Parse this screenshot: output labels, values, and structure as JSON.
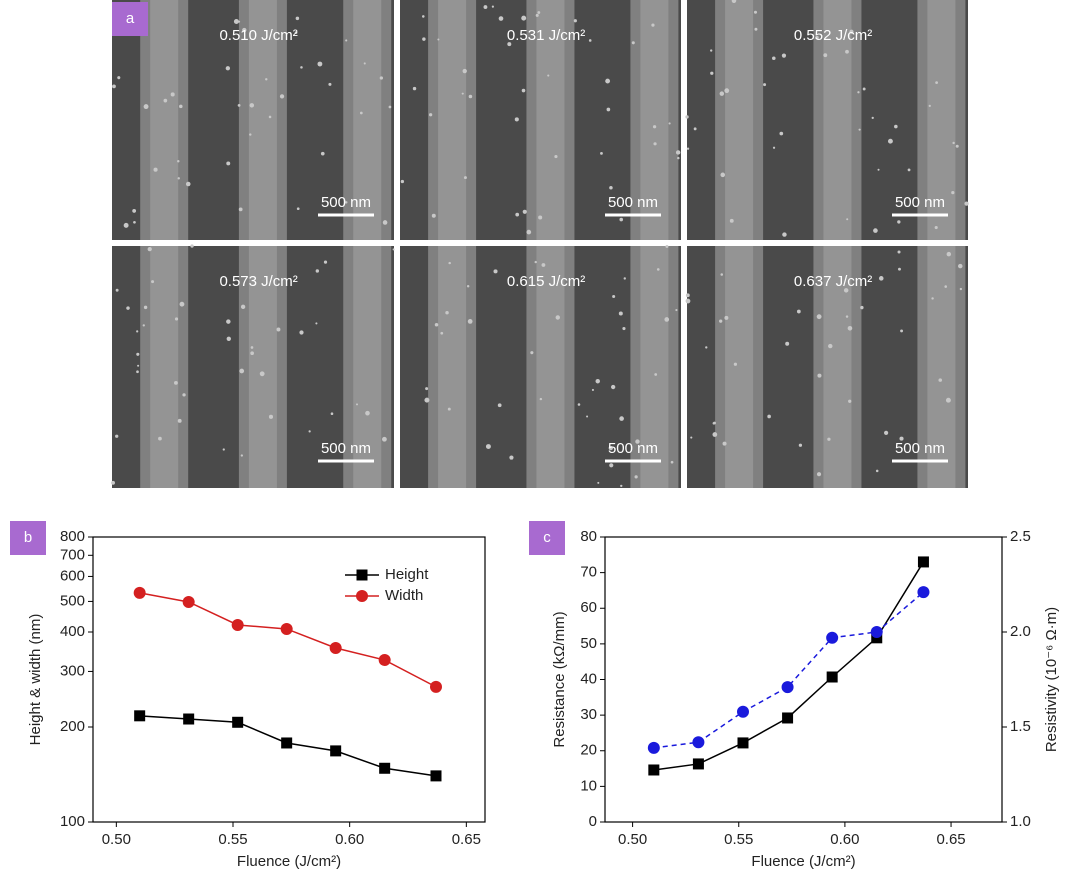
{
  "panel_a": {
    "label": "a",
    "images": [
      {
        "fluence": "0.510 J/cm²",
        "scale_bar": "500 nm"
      },
      {
        "fluence": "0.531 J/cm²",
        "scale_bar": "500 nm"
      },
      {
        "fluence": "0.552 J/cm²",
        "scale_bar": "500 nm"
      },
      {
        "fluence": "0.573 J/cm²",
        "scale_bar": "500 nm"
      },
      {
        "fluence": "0.615 J/cm²",
        "scale_bar": "500 nm"
      },
      {
        "fluence": "0.637 J/cm²",
        "scale_bar": "500 nm"
      }
    ]
  },
  "chart_data": [
    {
      "type": "line",
      "panel_label": "b",
      "x_label": "Fluence (J/cm²)",
      "y_label": "Height & width (nm)",
      "x": [
        0.51,
        0.531,
        0.552,
        0.573,
        0.594,
        0.615,
        0.637
      ],
      "series": [
        {
          "name": "Height",
          "color": "#000000",
          "marker": "square",
          "linestyle": "solid",
          "values": [
            217,
            212,
            207,
            178,
            168,
            148,
            140
          ]
        },
        {
          "name": "Width",
          "color": "#d42020",
          "marker": "circle",
          "linestyle": "solid",
          "values": [
            532,
            498,
            421,
            409,
            356,
            326,
            268
          ]
        }
      ],
      "xlim": [
        0.49,
        0.658
      ],
      "xticks": [
        {
          "value": 0.5,
          "label": "0.50"
        },
        0.55,
        {
          "value": 0.6,
          "label": "0.60"
        },
        0.65
      ],
      "ylim": [
        100,
        800
      ],
      "yticks": [
        100,
        200,
        300,
        400,
        500,
        600,
        700,
        800
      ],
      "ylog": true,
      "grid": false,
      "legend": "upper right"
    },
    {
      "type": "line",
      "panel_label": "c",
      "x_label": "Fluence (J/cm²)",
      "y_label": "Resistance (kΩ/mm)",
      "y2_label": "Resistivity (10⁻⁶ Ω·m)",
      "x": [
        0.51,
        0.531,
        0.552,
        0.573,
        0.594,
        0.615,
        0.637
      ],
      "series": [
        {
          "color": "#000000",
          "marker": "square",
          "linestyle": "solid",
          "values": [
            14.6,
            16.3,
            22.2,
            29.2,
            40.7,
            51.7,
            73
          ]
        },
        {
          "color": "#1a1adc",
          "marker": "circle",
          "linestyle": "dashed",
          "axis": "y2",
          "values": [
            1.39,
            1.42,
            1.58,
            1.71,
            1.97,
            2.0,
            2.21
          ]
        }
      ],
      "xlim": [
        0.487,
        0.674
      ],
      "xticks": [
        {
          "value": 0.5,
          "label": "0.50"
        },
        0.55,
        {
          "value": 0.6,
          "label": "0.60"
        },
        0.65
      ],
      "ylim": [
        0,
        80
      ],
      "yticks": [
        0,
        10,
        20,
        30,
        40,
        50,
        60,
        70,
        80
      ],
      "y2lim": [
        1.0,
        2.5
      ],
      "y2ticks": [
        {
          "value": 1.0,
          "label": "1.0"
        },
        1.5,
        {
          "value": 2.0,
          "label": "2.0"
        },
        2.5
      ],
      "grid": false
    }
  ]
}
